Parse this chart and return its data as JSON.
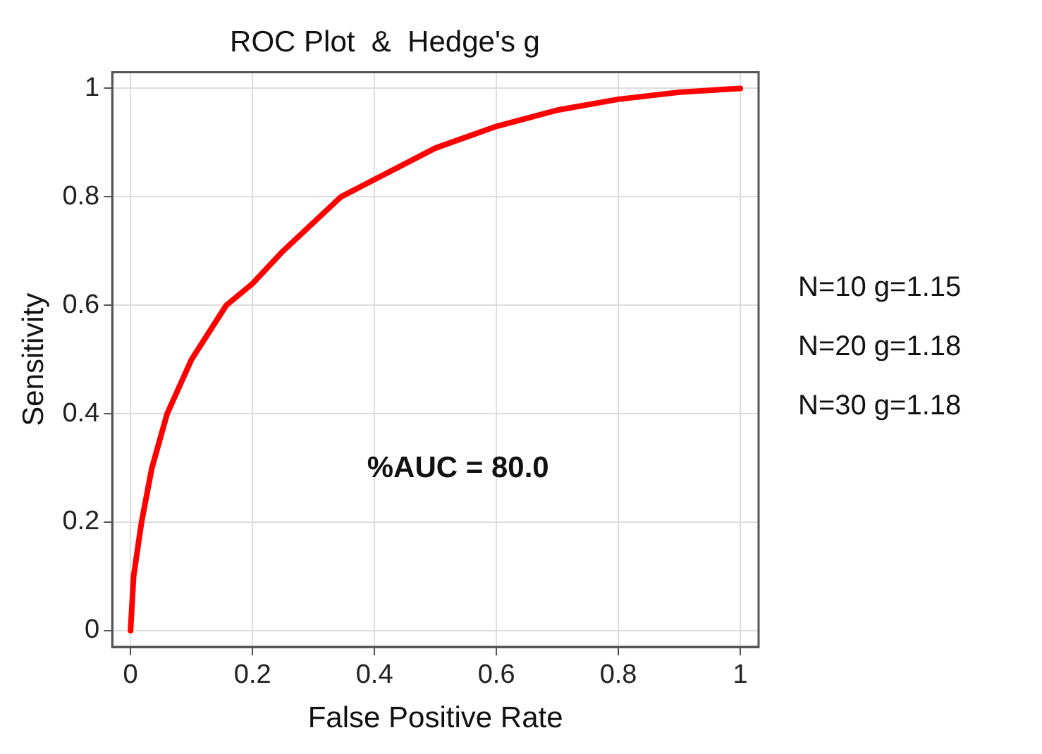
{
  "chart_data": {
    "type": "line",
    "title": "ROC Plot  &  Hedge's g",
    "xlabel": "False Positive Rate",
    "ylabel": "Sensitivity",
    "x": [
      0,
      0.005,
      0.018,
      0.035,
      0.06,
      0.1,
      0.157,
      0.2,
      0.25,
      0.345,
      0.4,
      0.5,
      0.6,
      0.7,
      0.8,
      0.9,
      1
    ],
    "series": [
      {
        "color": "#ff0000",
        "values": [
          0,
          0.1,
          0.2,
          0.3,
          0.4,
          0.5,
          0.6,
          0.64,
          0.7,
          0.8,
          0.832,
          0.89,
          0.93,
          0.96,
          0.98,
          0.993,
          1
        ]
      }
    ],
    "xlim": [
      -0.03,
      1.03
    ],
    "ylim": [
      -0.03,
      1.03
    ],
    "xticks": [
      0,
      0.2,
      0.4,
      0.6,
      0.8,
      1
    ],
    "yticks": [
      0,
      0.2,
      0.4,
      0.6,
      0.8,
      1
    ],
    "grid": true,
    "legend": false,
    "marker": "none",
    "line_style": "solid",
    "annotations": [
      "%AUC = 80.0",
      "N=10 g=1.15",
      "N=20 g=1.18",
      "N=30 g=1.18"
    ]
  }
}
